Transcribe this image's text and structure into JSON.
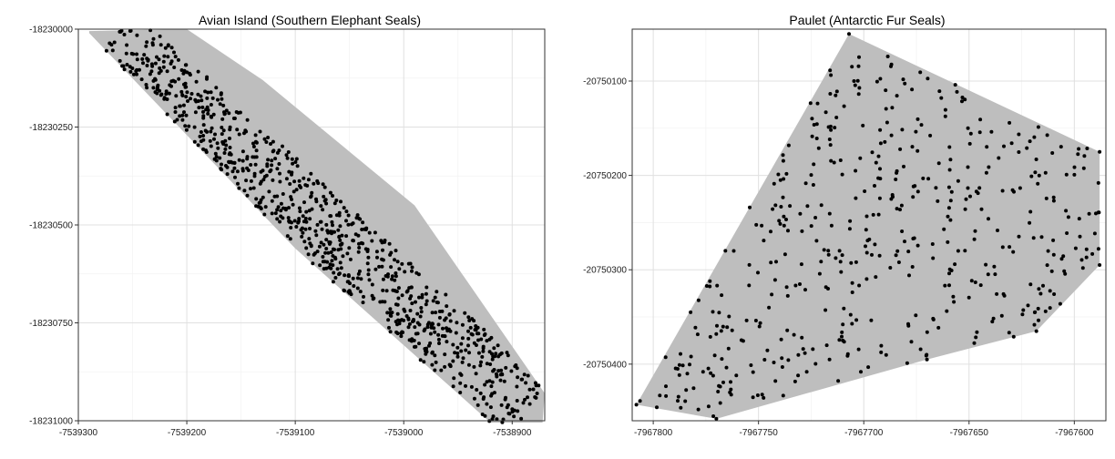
{
  "chart_data": [
    {
      "type": "scatter",
      "title": "Avian Island (Southern Elephant Seals)",
      "xlim": [
        -7539300,
        -7538870
      ],
      "ylim": [
        -18230000,
        -18231000
      ],
      "x_ticks": [
        -7539300,
        -7539200,
        -7539100,
        -7539000,
        -7538900
      ],
      "x_tick_labels": [
        "-7539300",
        "-7539200",
        "-7539100",
        "-7539000",
        "-7538900"
      ],
      "y_ticks": [
        -18230000,
        -18230250,
        -18230500,
        -18230750,
        -18231000
      ],
      "y_tick_labels": [
        "-18230000",
        "-18230250",
        "-18230500",
        "-18230750",
        "-18231000"
      ],
      "grid": true,
      "hull": [
        [
          -7539290,
          -18230005
        ],
        [
          -7539200,
          -18230000
        ],
        [
          -7539130,
          -18230130
        ],
        [
          -7538990,
          -18230450
        ],
        [
          -7538870,
          -18230930
        ],
        [
          -7538872,
          -18231005
        ],
        [
          -7538920,
          -18231005
        ],
        [
          -7539100,
          -18230560
        ],
        [
          -7539290,
          -18230010
        ]
      ],
      "points_note_free": true,
      "seed": 7,
      "point_count": 900,
      "band": {
        "start": [
          -7539270,
          -18230030
        ],
        "end": [
          -7538890,
          -18230990
        ],
        "half_width": 42
      },
      "point_color": "#000000",
      "hull_color": "#bebebe"
    },
    {
      "type": "scatter",
      "title": "Paulet (Antarctic Fur Seals)",
      "xlim": [
        -7967810,
        -7967585
      ],
      "ylim": [
        -20750045,
        -20750460
      ],
      "x_ticks": [
        -7967800,
        -7967750,
        -7967700,
        -7967650,
        -7967600
      ],
      "x_tick_labels": [
        "-7967800",
        "-7967750",
        "-7967700",
        "-7967650",
        "-7967600"
      ],
      "y_ticks": [
        -20750100,
        -20750200,
        -20750300,
        -20750400
      ],
      "y_tick_labels": [
        "-20750100",
        "-20750200",
        "-20750300",
        "-20750400"
      ],
      "grid": true,
      "hull": [
        [
          -7967707,
          -20750050
        ],
        [
          -7967588,
          -20750175
        ],
        [
          -7967588,
          -20750295
        ],
        [
          -7967618,
          -20750365
        ],
        [
          -7967670,
          -20750395
        ],
        [
          -7967770,
          -20750458
        ],
        [
          -7967808,
          -20750443
        ]
      ],
      "seed": 11,
      "point_count": 480,
      "point_color": "#000000",
      "hull_color": "#bebebe"
    }
  ]
}
